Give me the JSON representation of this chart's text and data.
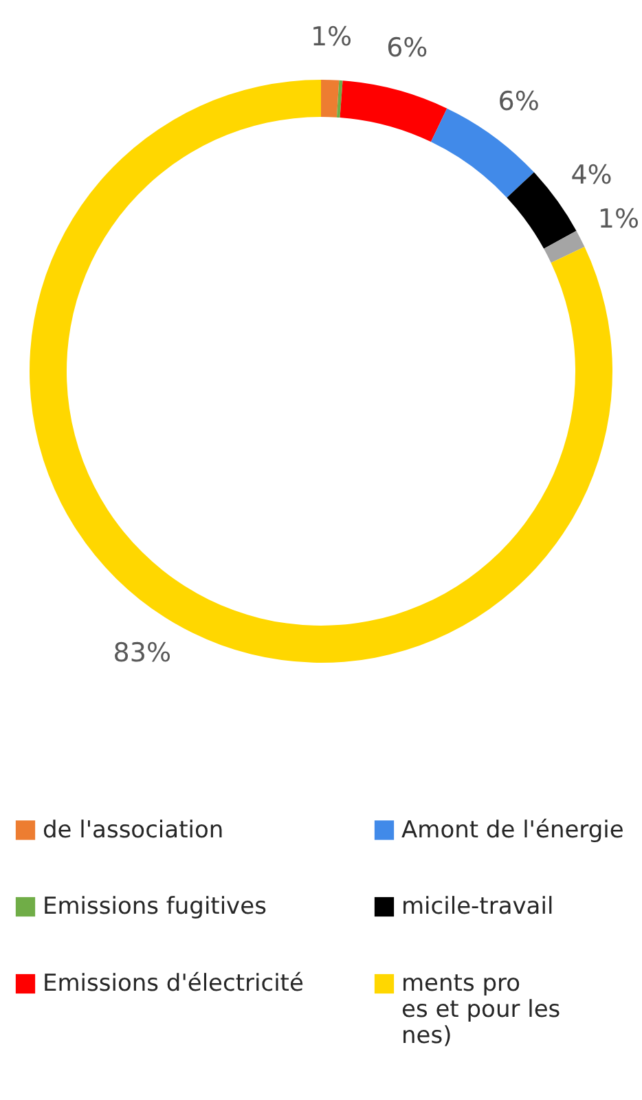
{
  "chart_data": {
    "type": "donut",
    "categories": [
      "de l'association",
      "Emissions fugitives",
      "Emissions d'électricité",
      "Amont de l'énergie",
      "micile-travail",
      null,
      "ments pro\nes et pour les\nnes)"
    ],
    "values": [
      1,
      0.2,
      6,
      6,
      4,
      1,
      83
    ],
    "value_labels": [
      "1%",
      null,
      "6%",
      "6%",
      "4%",
      "1%",
      "83%"
    ],
    "colors": [
      "#ed7d31",
      "#70ad47",
      "#ff0000",
      "#418ae9",
      "#000000",
      "#a5a5a5",
      "#ffd700"
    ],
    "legend": "bottom"
  }
}
